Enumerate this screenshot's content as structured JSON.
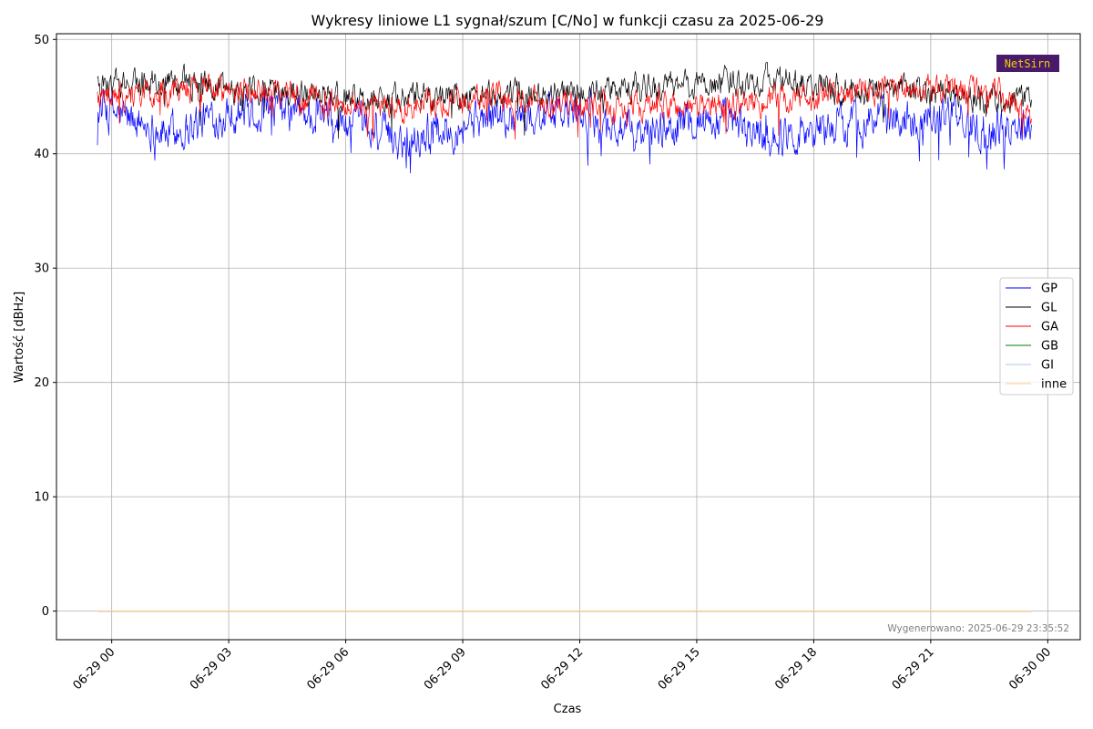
{
  "chart_data": {
    "type": "line",
    "title": "Wykresy liniowe L1 sygnał/szum [C/No] w funkcji czasu za 2025-06-29",
    "xlabel": "Czas",
    "ylabel": "Wartość [dBHz]",
    "x_start": "2025-06-28 23:38",
    "x_end": "2025-06-29 23:35",
    "xlim": [
      "2025-06-28 22:35",
      "2025-06-30 00:50"
    ],
    "ylim": [
      -2.5,
      50.5
    ],
    "x_ticks": [
      {
        "t": "2025-06-29 00:00",
        "label": "06-29 00"
      },
      {
        "t": "2025-06-29 03:00",
        "label": "06-29 03"
      },
      {
        "t": "2025-06-29 06:00",
        "label": "06-29 06"
      },
      {
        "t": "2025-06-29 09:00",
        "label": "06-29 09"
      },
      {
        "t": "2025-06-29 12:00",
        "label": "06-29 12"
      },
      {
        "t": "2025-06-29 15:00",
        "label": "06-29 15"
      },
      {
        "t": "2025-06-29 18:00",
        "label": "06-29 18"
      },
      {
        "t": "2025-06-29 21:00",
        "label": "06-29 21"
      },
      {
        "t": "2025-06-30 00:00",
        "label": "06-30 00"
      }
    ],
    "y_ticks": [
      0,
      10,
      20,
      30,
      40,
      50
    ],
    "y_tick_labels": [
      "0",
      "10",
      "20",
      "30",
      "40",
      "50"
    ],
    "grid": true,
    "legend_position": "right",
    "series": [
      {
        "name": "GP",
        "color": "#0000ff",
        "mean": 43.0,
        "noise": 1.4,
        "min": 38.3,
        "max": 46.8,
        "profile": [
          {
            "t": "2025-06-28 23:40",
            "v": 44.0
          },
          {
            "t": "2025-06-29 01:30",
            "v": 41.8
          },
          {
            "t": "2025-06-29 03:00",
            "v": 43.8
          },
          {
            "t": "2025-06-29 05:00",
            "v": 43.5
          },
          {
            "t": "2025-06-29 07:30",
            "v": 41.2
          },
          {
            "t": "2025-06-29 09:30",
            "v": 43.2
          },
          {
            "t": "2025-06-29 12:00",
            "v": 43.5
          },
          {
            "t": "2025-06-29 13:30",
            "v": 41.5
          },
          {
            "t": "2025-06-29 15:00",
            "v": 43.2
          },
          {
            "t": "2025-06-29 17:00",
            "v": 41.5
          },
          {
            "t": "2025-06-29 19:00",
            "v": 42.8
          },
          {
            "t": "2025-06-29 21:30",
            "v": 43.5
          },
          {
            "t": "2025-06-29 22:30",
            "v": 41.8
          },
          {
            "t": "2025-06-29 23:35",
            "v": 43.2
          }
        ]
      },
      {
        "name": "GL",
        "color": "#000000",
        "mean": 45.5,
        "noise": 1.0,
        "min": 41.3,
        "max": 48.0,
        "profile": [
          {
            "t": "2025-06-28 23:40",
            "v": 46.0
          },
          {
            "t": "2025-06-29 01:30",
            "v": 46.3
          },
          {
            "t": "2025-06-29 04:00",
            "v": 45.5
          },
          {
            "t": "2025-06-29 06:30",
            "v": 44.8
          },
          {
            "t": "2025-06-29 09:00",
            "v": 45.0
          },
          {
            "t": "2025-06-29 12:00",
            "v": 45.3
          },
          {
            "t": "2025-06-29 15:00",
            "v": 46.0
          },
          {
            "t": "2025-06-29 17:00",
            "v": 46.5
          },
          {
            "t": "2025-06-29 19:00",
            "v": 45.5
          },
          {
            "t": "2025-06-29 21:00",
            "v": 45.5
          },
          {
            "t": "2025-06-29 23:35",
            "v": 44.5
          }
        ]
      },
      {
        "name": "GA",
        "color": "#ff0000",
        "mean": 44.8,
        "noise": 1.0,
        "min": 39.6,
        "max": 47.0,
        "profile": [
          {
            "t": "2025-06-28 23:40",
            "v": 44.8
          },
          {
            "t": "2025-06-29 02:30",
            "v": 45.8
          },
          {
            "t": "2025-06-29 04:30",
            "v": 45.0
          },
          {
            "t": "2025-06-29 07:00",
            "v": 44.0
          },
          {
            "t": "2025-06-29 10:00",
            "v": 45.0
          },
          {
            "t": "2025-06-29 13:00",
            "v": 44.0
          },
          {
            "t": "2025-06-29 15:30",
            "v": 44.2
          },
          {
            "t": "2025-06-29 18:00",
            "v": 45.0
          },
          {
            "t": "2025-06-29 20:30",
            "v": 45.8
          },
          {
            "t": "2025-06-29 22:30",
            "v": 45.5
          },
          {
            "t": "2025-06-29 23:35",
            "v": 43.5
          }
        ]
      },
      {
        "name": "GB",
        "color": "#008000",
        "mean": 0,
        "noise": 0,
        "min": 0,
        "max": 0,
        "profile": [
          {
            "t": "2025-06-28 23:40",
            "v": 0
          },
          {
            "t": "2025-06-29 23:35",
            "v": 0
          }
        ]
      },
      {
        "name": "GI",
        "color": "#a8c8f0",
        "mean": 0,
        "noise": 0,
        "min": 0,
        "max": 0,
        "profile": [
          {
            "t": "2025-06-28 23:40",
            "v": 0
          },
          {
            "t": "2025-06-29 23:35",
            "v": 0
          }
        ]
      },
      {
        "name": "inne",
        "color": "#ffc890",
        "mean": 0,
        "noise": 0,
        "min": 0,
        "max": 0,
        "profile": [
          {
            "t": "2025-06-28 23:40",
            "v": 0
          },
          {
            "t": "2025-06-29 23:35",
            "v": 0
          }
        ]
      }
    ]
  },
  "footer": {
    "generated_text": "Wygenerowano: 2025-06-29 23:35:52"
  },
  "logo": {
    "text": "NetSirn",
    "background": "#4a1a6a",
    "text_color": "#f0d000"
  }
}
